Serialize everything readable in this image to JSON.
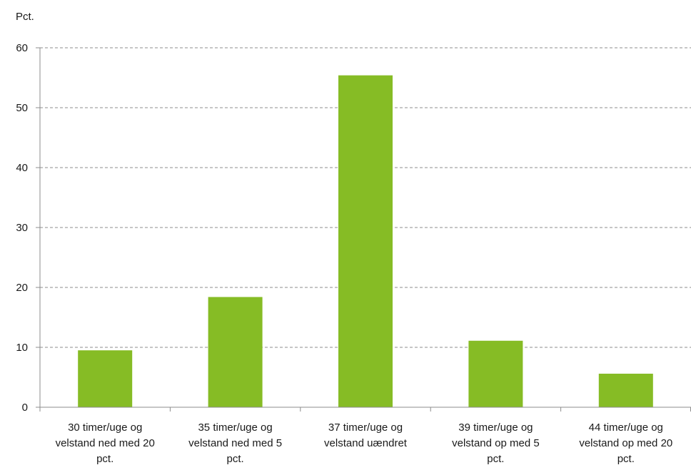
{
  "chart_data": {
    "type": "bar",
    "unit_label": "Pct.",
    "title": "",
    "xlabel": "",
    "ylabel": "Pct.",
    "ylim": [
      0,
      60
    ],
    "yticks": [
      0,
      10,
      20,
      30,
      40,
      50,
      60
    ],
    "grid": true,
    "legend": "none",
    "bar_color": "#86bc25",
    "categories": [
      "30 timer/uge og velstand ned med 20 pct.",
      "35 timer/uge og velstand ned med 5 pct.",
      "37 timer/uge og velstand uændret",
      "39 timer/uge og velstand op med 5 pct.",
      "44 timer/uge og velstand op med 20 pct."
    ],
    "category_lines": [
      [
        "30 timer/uge og",
        "velstand ned med 20",
        "pct."
      ],
      [
        "35 timer/uge og",
        "velstand ned med 5",
        "pct."
      ],
      [
        "37 timer/uge og",
        "velstand uændret"
      ],
      [
        "39 timer/uge og",
        "velstand op med 5",
        "pct."
      ],
      [
        "44 timer/uge og",
        "velstand op med 20",
        "pct."
      ]
    ],
    "values": [
      9.5,
      18.4,
      55.4,
      11.1,
      5.6
    ]
  }
}
